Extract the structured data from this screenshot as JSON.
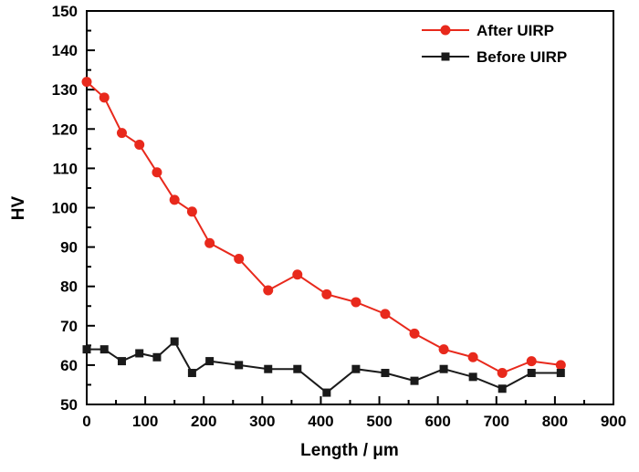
{
  "chart_data": {
    "type": "line",
    "title": "",
    "xlabel": "Length / μm",
    "ylabel": "HV",
    "xlim": [
      0,
      900
    ],
    "ylim": [
      50,
      150
    ],
    "xticks": [
      0,
      100,
      200,
      300,
      400,
      500,
      600,
      700,
      800,
      900
    ],
    "yticks": [
      50,
      60,
      70,
      80,
      90,
      100,
      110,
      120,
      130,
      140,
      150
    ],
    "x_minor_step": 50,
    "y_minor_step": 5,
    "grid": false,
    "legend_position": "top-right",
    "axis_color": "#000000",
    "background_color": "#ffffff",
    "series": [
      {
        "name": "After UIRP",
        "color": "#e8291c",
        "marker": "circle",
        "x": [
          0,
          30,
          60,
          90,
          120,
          150,
          180,
          210,
          260,
          310,
          360,
          410,
          460,
          510,
          560,
          610,
          660,
          710,
          760,
          810
        ],
        "y": [
          132,
          128,
          119,
          116,
          109,
          102,
          99,
          91,
          87,
          79,
          83,
          78,
          76,
          73,
          68,
          64,
          62,
          58,
          61,
          60
        ]
      },
      {
        "name": "Before UIRP",
        "color": "#1a1a1a",
        "marker": "square",
        "x": [
          0,
          30,
          60,
          90,
          120,
          150,
          180,
          210,
          260,
          310,
          360,
          410,
          460,
          510,
          560,
          610,
          660,
          710,
          760,
          810
        ],
        "y": [
          64,
          64,
          61,
          63,
          62,
          66,
          58,
          61,
          60,
          59,
          59,
          53,
          59,
          58,
          56,
          59,
          57,
          54,
          58,
          58
        ]
      }
    ]
  }
}
